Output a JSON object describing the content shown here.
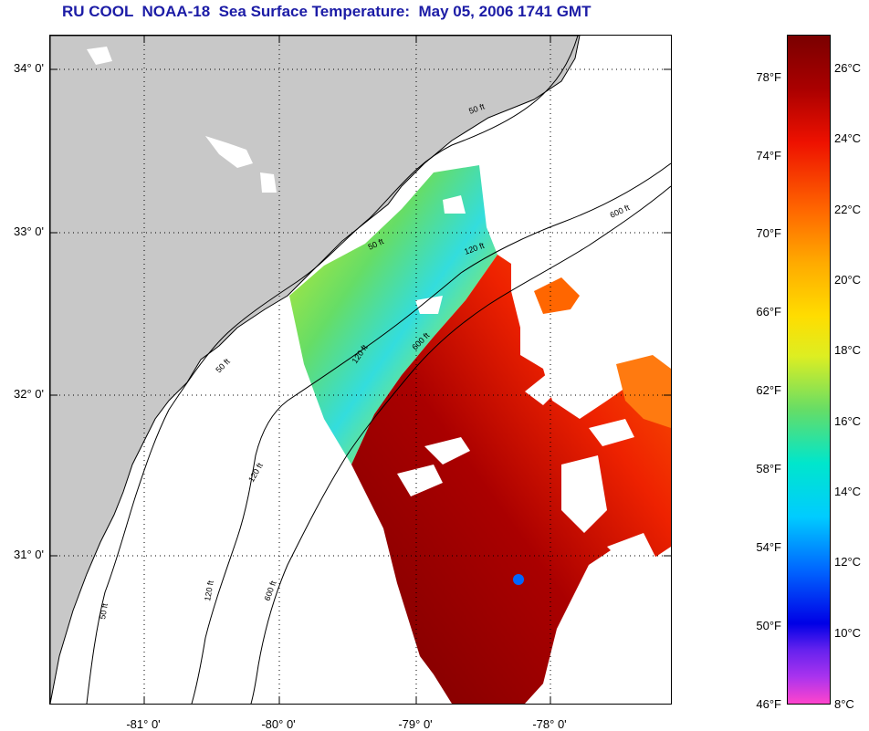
{
  "title": "RU COOL  NOAA-18  Sea Surface Temperature:  May 05, 2006 1741 GMT",
  "colors": {
    "land": "#c8c8c8",
    "title": "#1c1ca6",
    "scale": [
      "#ff44cc",
      "#7b2ff7",
      "#0000e6",
      "#0066ff",
      "#00ccff",
      "#00e6cc",
      "#66dd66",
      "#ddee22",
      "#ffdd00",
      "#ffaa00",
      "#ff6600",
      "#ee1100",
      "#aa0000",
      "#7a0000"
    ]
  },
  "axes": {
    "lat_labels": [
      "34° 0'",
      "33° 0'",
      "32° 0'",
      "31° 0'"
    ],
    "lon_labels": [
      "-81° 0'",
      "-80° 0'",
      "-79° 0'",
      "-78° 0'"
    ]
  },
  "isobaths": [
    "50 ft",
    "120 ft",
    "600 ft"
  ],
  "colorbar": {
    "fahrenheit": [
      "78°F",
      "74°F",
      "70°F",
      "66°F",
      "62°F",
      "58°F",
      "54°F",
      "50°F",
      "46°F"
    ],
    "celsius": [
      "26°C",
      "24°C",
      "22°C",
      "20°C",
      "18°C",
      "16°C",
      "14°C",
      "12°C",
      "10°C",
      "8°C"
    ]
  }
}
